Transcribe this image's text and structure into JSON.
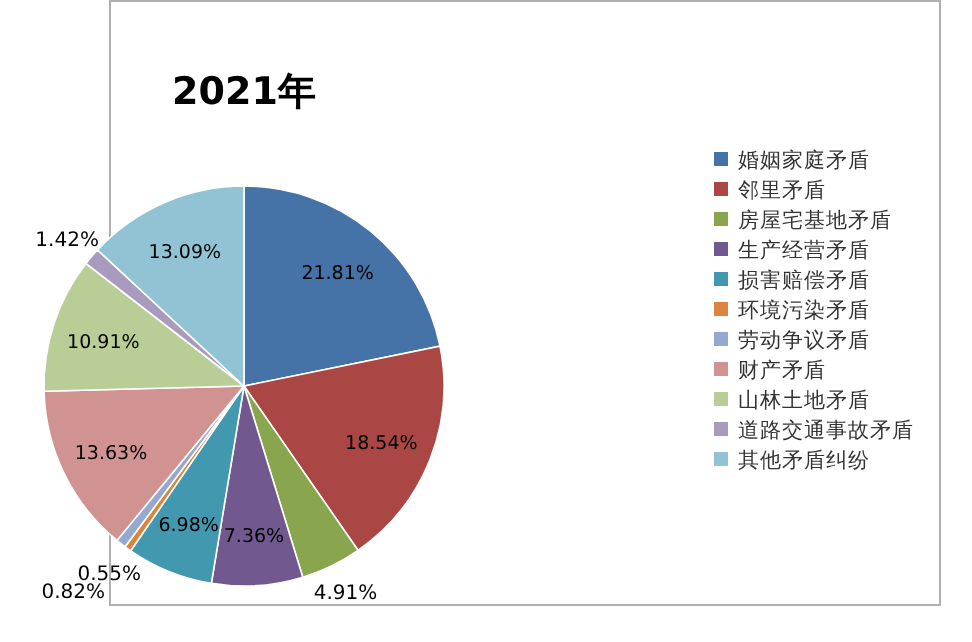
{
  "chart_data": {
    "type": "pie",
    "title": "2021年",
    "categories": [
      "婚姻家庭矛盾",
      "邻里矛盾",
      "房屋宅基地矛盾",
      "生产经营矛盾",
      "损害赔偿矛盾",
      "环境污染矛盾",
      "劳动争议矛盾",
      "财产矛盾",
      "山林土地矛盾",
      "道路交通事故矛盾",
      "其他矛盾纠纷"
    ],
    "values": [
      21.81,
      18.54,
      4.91,
      7.36,
      6.98,
      0.55,
      0.82,
      13.63,
      10.91,
      1.42,
      13.09
    ],
    "colors": [
      "#4572a7",
      "#aa4643",
      "#89a54e",
      "#71588f",
      "#4198af",
      "#db843d",
      "#93a9cf",
      "#d19392",
      "#b9cd96",
      "#a99bbd",
      "#92c3d4"
    ],
    "value_labels": [
      "21.81%",
      "18.54%",
      "4.91%",
      "7.36%",
      "6.98%",
      "0.55%",
      "0.82%",
      "13.63%",
      "10.91%",
      "1.42%",
      "13.09%"
    ],
    "legend": "right"
  }
}
